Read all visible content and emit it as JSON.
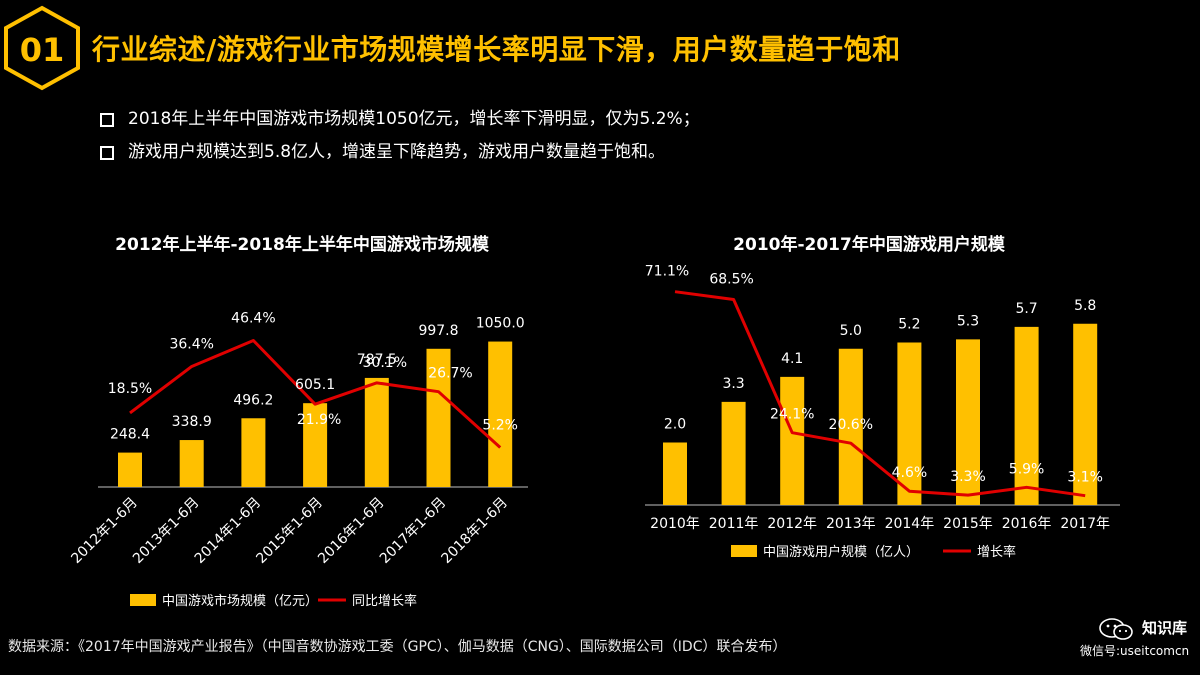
{
  "badge": {
    "number": "01"
  },
  "title": "行业综述/游戏行业市场规模增长率明显下滑，用户数量趋于饱和",
  "bullets": [
    "2018年上半年中国游戏市场规模1050亿元，增长率下滑明显，仅为5.2%；",
    "游戏用户规模达到5.8亿人，增速呈下降趋势，游戏用户数量趋于饱和。"
  ],
  "colors": {
    "accent": "#FFC000",
    "line": "#E00000",
    "background": "#000000"
  },
  "chart_data": [
    {
      "type": "bar+line",
      "title": "2012年上半年-2018年上半年中国游戏市场规模",
      "categories": [
        "2012年1-6月",
        "2013年1-6月",
        "2014年1-6月",
        "2015年1-6月",
        "2016年1-6月",
        "2017年1-6月",
        "2018年1-6月"
      ],
      "bar_series": {
        "name": "中国游戏市场规模（亿元）",
        "values": [
          248.4,
          338.9,
          496.2,
          605.1,
          787.5,
          997.8,
          1050.0
        ],
        "labels": [
          "248.4",
          "338.9",
          "496.2",
          "605.1",
          "787.5",
          "997.8",
          "1050.0"
        ]
      },
      "line_series": {
        "name": "同比增长率",
        "values": [
          18.5,
          36.4,
          46.4,
          21.9,
          30.1,
          26.7,
          5.2
        ],
        "labels": [
          "18.5%",
          "36.4%",
          "46.4%",
          "21.9%",
          "30.1%",
          "26.7%",
          "5.2%"
        ]
      },
      "bar_ylim": [
        0,
        1350
      ],
      "line_ylim": [
        -10,
        62
      ],
      "legend": "bottom"
    },
    {
      "type": "bar+line",
      "title": "2010年-2017年中国游戏用户规模",
      "categories": [
        "2010年",
        "2011年",
        "2012年",
        "2013年",
        "2014年",
        "2015年",
        "2016年",
        "2017年"
      ],
      "bar_series": {
        "name": "中国游戏用户规模（亿人）",
        "values": [
          2.0,
          3.3,
          4.1,
          5.0,
          5.2,
          5.3,
          5.7,
          5.8
        ],
        "labels": [
          "2.0",
          "3.3",
          "4.1",
          "5.0",
          "5.2",
          "5.3",
          "5.7",
          "5.8"
        ]
      },
      "line_series": {
        "name": "增长率",
        "values": [
          71.1,
          68.5,
          24.1,
          20.6,
          4.6,
          3.3,
          5.9,
          3.1
        ],
        "labels": [
          "71.1%",
          "68.5%",
          "24.1%",
          "20.6%",
          "4.6%",
          "3.3%",
          "5.9%",
          "3.1%"
        ]
      },
      "bar_ylim": [
        0,
        7.2
      ],
      "line_ylim": [
        0,
        75
      ],
      "legend": "bottom"
    }
  ],
  "source": "数据来源：《2017年中国游戏产业报告》（中国音数协游戏工委（GPC）、伽马数据（CNG）、国际数据公司（IDC）联合发布）",
  "watermark": {
    "name": "知识库",
    "id": "微信号:useitcomcn"
  }
}
